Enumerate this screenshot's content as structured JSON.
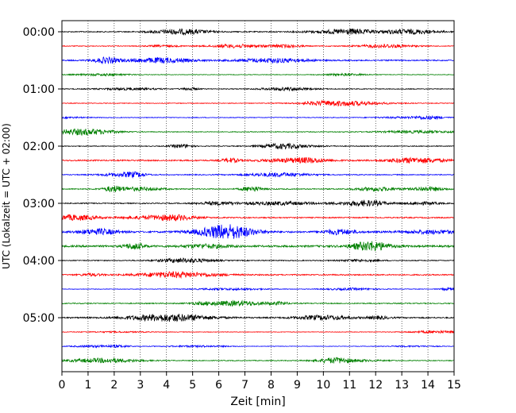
{
  "chart_data": {
    "type": "line",
    "title": "",
    "xlabel": "Zeit  [min]",
    "ylabel": "UTC (Lokalzeit = UTC + 02:00)",
    "xlim": [
      0,
      15
    ],
    "x_ticks": [
      "0",
      "1",
      "2",
      "3",
      "4",
      "5",
      "6",
      "7",
      "8",
      "9",
      "10",
      "11",
      "12",
      "13",
      "14",
      "15"
    ],
    "y_ticks": [
      "00:00",
      "01:00",
      "02:00",
      "03:00",
      "04:00",
      "05:00"
    ],
    "grid": "vertical dotted",
    "trace_colors": [
      "#000000",
      "#ff0000",
      "#0000ff",
      "#008000"
    ],
    "rows_per_hour": 4,
    "row_interval_min": 15,
    "n_rows": 24,
    "series_note": "24 seismogram traces, each 15 minutes long, color cycling black/red/blue/green",
    "trace_amplitude_relative": [
      0.45,
      0.35,
      0.55,
      0.25,
      0.35,
      0.3,
      0.3,
      0.35,
      0.35,
      0.6,
      0.4,
      0.45,
      0.45,
      0.5,
      0.7,
      0.85,
      0.4,
      0.55,
      0.25,
      0.45,
      0.55,
      0.25,
      0.2,
      0.35
    ]
  }
}
